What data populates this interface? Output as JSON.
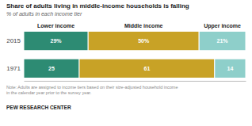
{
  "chart_data": {
    "type": "bar",
    "orientation": "horizontal",
    "stacked": true,
    "title": "Share of adults living in middle-income households is falling",
    "subtitle": "% of adults in each income tier",
    "categories": [
      "2015",
      "1971"
    ],
    "series": [
      {
        "name": "Lower income",
        "color": "#2d8b73",
        "values": [
          29,
          25
        ],
        "value_labels": [
          "29%",
          "25"
        ]
      },
      {
        "name": "Middle income",
        "color": "#c8a226",
        "values": [
          50,
          61
        ],
        "value_labels": [
          "50%",
          "61"
        ]
      },
      {
        "name": "Upper income",
        "color": "#8ecfca",
        "values": [
          21,
          14
        ],
        "value_labels": [
          "21%",
          "14"
        ]
      }
    ],
    "xlim": [
      0,
      100
    ],
    "data_labels": true,
    "tick_labels": "y",
    "grid": false,
    "note": "Note: Adults are assigned to income tiers based on their size-adjusted household income\nin the calendar year prior to the survey year.",
    "source": "PEW RESEARCH CENTER"
  }
}
